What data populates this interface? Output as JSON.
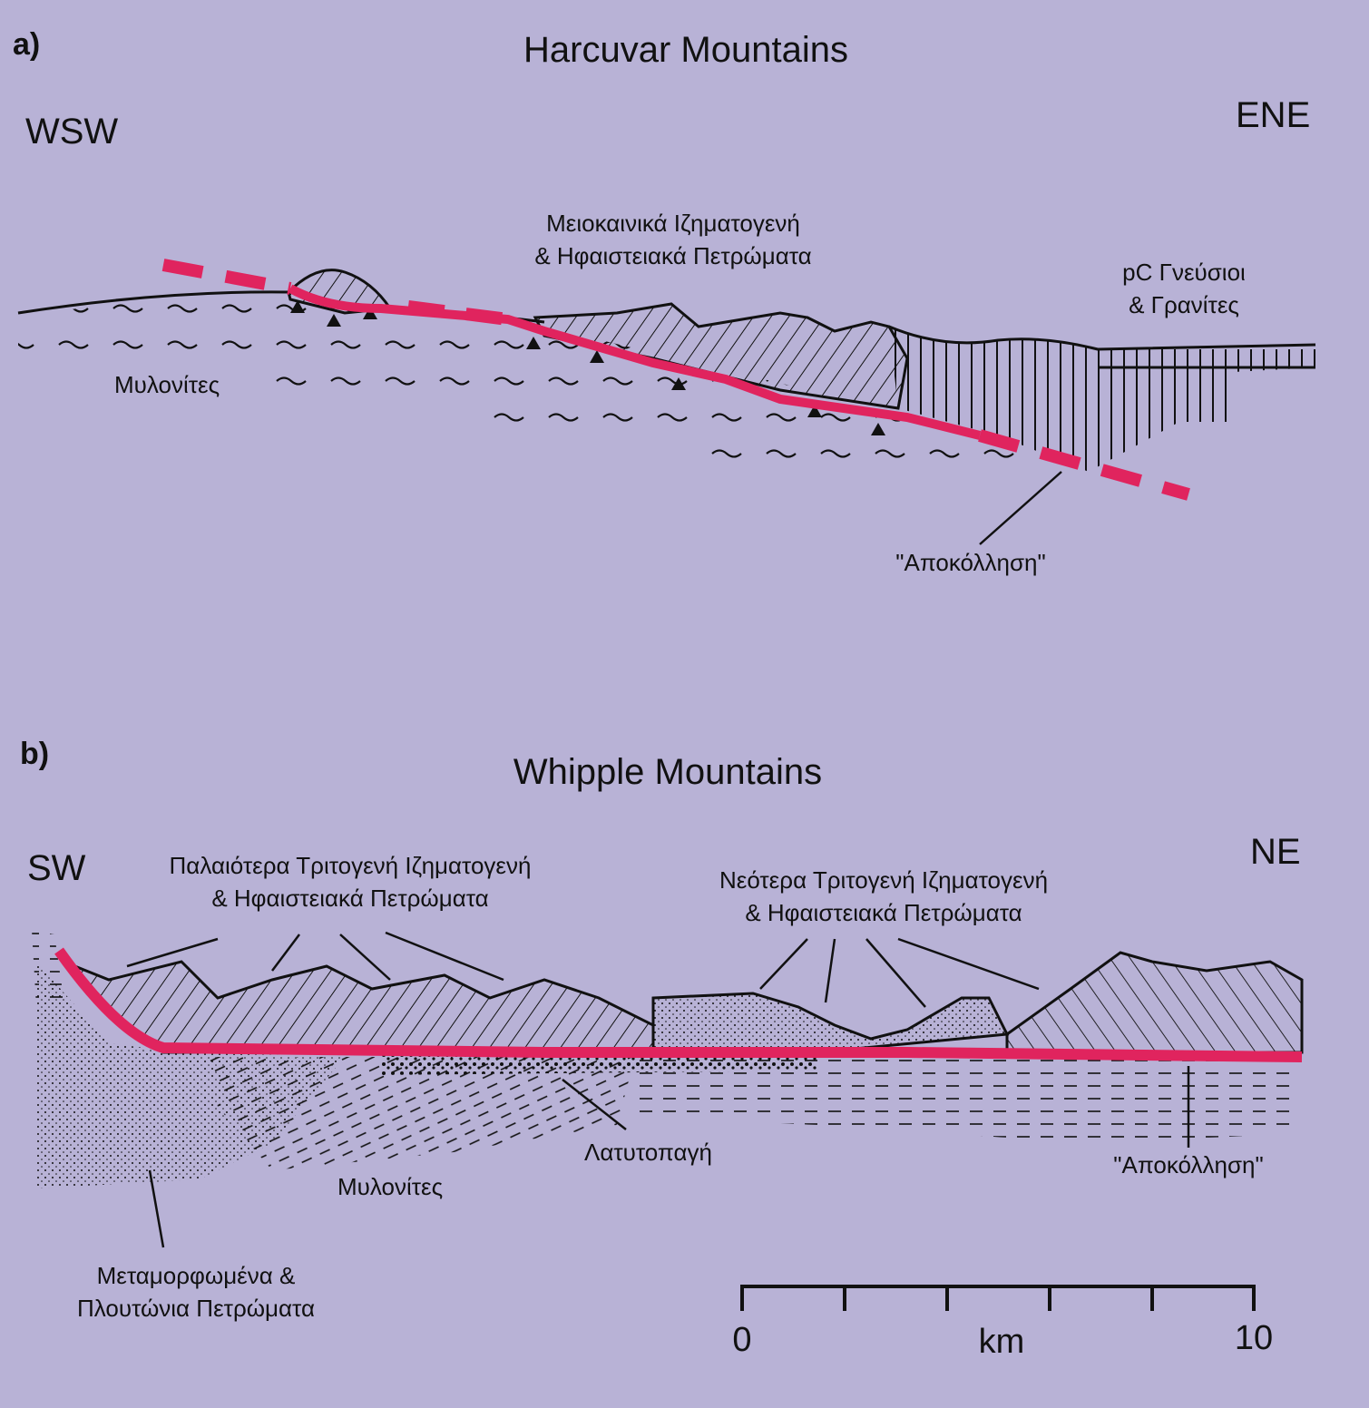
{
  "panel_a": {
    "letter": "a)",
    "title": "Harcuvar Mountains",
    "dir_left": "WSW",
    "dir_right": "ENE",
    "label_miocene_l1": "Μειοκαινικά Ιζηματογενή",
    "label_miocene_l2": "& Ηφαιστειακά Πετρώματα",
    "label_gneiss_l1": "pC Γνεύσιοι",
    "label_gneiss_l2": "& Γρανίτες",
    "label_mylonites": "Μυλονίτες",
    "label_detachment": "\"Αποκόλληση\""
  },
  "panel_b": {
    "letter": "b)",
    "title": "Whipple Mountains",
    "dir_left": "SW",
    "dir_right": "NE",
    "label_older_l1": "Παλαιότερα Τριτογενή Ιζηματογενή",
    "label_older_l2": "& Ηφαιστειακά Πετρώματα",
    "label_younger_l1": "Νεότερα Τριτογενή Ιζηματογενή",
    "label_younger_l2": "& Ηφαιστειακά Πετρώματα",
    "label_breccia": "Λατυτοπαγή",
    "label_mylonites": "Μυλονίτες",
    "label_detachment": "\"Αποκόλληση\"",
    "label_meta_l1": "Μεταμορφωμένα &",
    "label_meta_l2": "Πλουτώνια Πετρώματα"
  },
  "scale": {
    "start": "0",
    "unit": "km",
    "end": "10"
  },
  "colors": {
    "background": "#b8b2d6",
    "fault": "#e0245e",
    "ink": "#111111"
  }
}
